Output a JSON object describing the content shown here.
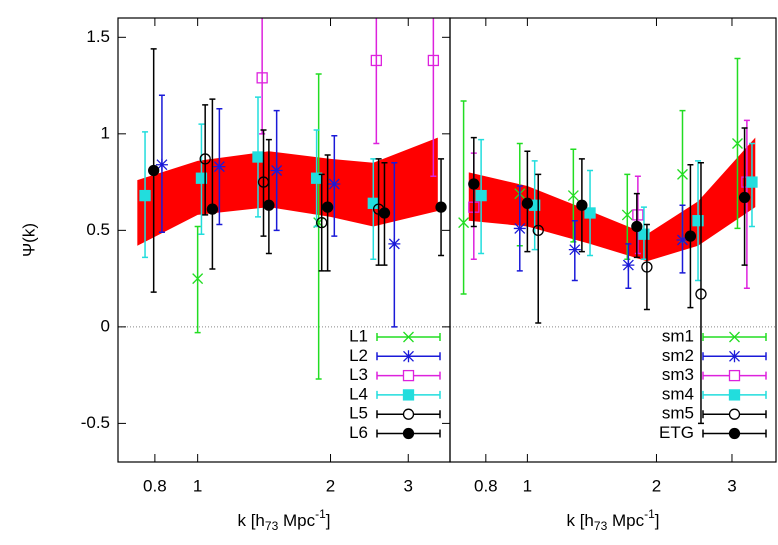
{
  "chart_data": [
    {
      "type": "errorbar",
      "xscale": "log",
      "xlim": [
        0.66,
        3.73
      ],
      "ylim": [
        -0.7,
        1.6
      ],
      "xticks": [
        0.8,
        1,
        2,
        3
      ],
      "yticks": [
        1.5,
        1,
        0.5,
        0,
        -0.5
      ],
      "zero_line": true,
      "legend": "bottom-right",
      "ylabel": "Ψ(k)",
      "xlabel": {
        "start": "k [h",
        "sub": "73",
        "mid": " Mpc",
        "sup": "-1",
        "end": "]"
      },
      "band": {
        "color": "#ff0000",
        "x": [
          0.73,
          1.0,
          1.45,
          2.0,
          2.5,
          3.5
        ],
        "lower": [
          0.42,
          0.58,
          0.62,
          0.57,
          0.52,
          0.6
        ],
        "upper": [
          0.76,
          0.86,
          0.91,
          0.87,
          0.85,
          0.98
        ]
      },
      "series": [
        {
          "name": "L1",
          "color": "#22dd22",
          "marker": "x",
          "x": [
            1.0,
            1.88
          ],
          "values": [
            0.25,
            0.54
          ],
          "lower": [
            -0.03,
            -0.27
          ],
          "upper": [
            0.52,
            1.31
          ]
        },
        {
          "name": "L2",
          "color": "#1a1ad8",
          "marker": "star",
          "x": [
            0.83,
            1.12,
            1.51,
            2.04,
            2.79
          ],
          "values": [
            0.84,
            0.83,
            0.81,
            0.74,
            0.43
          ],
          "lower": [
            0.49,
            0.53,
            0.5,
            0.47,
            0.0
          ],
          "upper": [
            1.2,
            1.13,
            1.12,
            0.99,
            0.85
          ]
        },
        {
          "name": "L3",
          "color": "#dd22dd",
          "marker": "square-open",
          "x": [
            1.4,
            2.54,
            3.42
          ],
          "values": [
            1.29,
            1.38,
            1.38
          ],
          "lower": [
            1.0,
            0.95,
            0.78
          ],
          "upper": [
            1.7,
            1.7,
            1.7
          ]
        },
        {
          "name": "L4",
          "color": "#22dddd",
          "marker": "square",
          "x": [
            0.76,
            1.02,
            1.37,
            1.86,
            2.5
          ],
          "values": [
            0.68,
            0.77,
            0.88,
            0.77,
            0.64
          ],
          "lower": [
            0.36,
            0.48,
            0.57,
            0.52,
            0.35
          ],
          "upper": [
            1.01,
            1.05,
            1.19,
            1.02,
            0.87
          ]
        },
        {
          "name": "L5",
          "color": "#000000",
          "marker": "circle-open",
          "x": [
            1.04,
            1.41,
            1.91,
            2.57
          ],
          "values": [
            0.87,
            0.75,
            0.54,
            0.61
          ],
          "lower": [
            0.58,
            0.47,
            0.29,
            0.32
          ],
          "upper": [
            1.15,
            1.02,
            0.79,
            0.87
          ]
        },
        {
          "name": "L6",
          "color": "#000000",
          "marker": "circle",
          "x": [
            0.795,
            1.08,
            1.45,
            1.97,
            2.65,
            3.56
          ],
          "values": [
            0.81,
            0.61,
            0.63,
            0.62,
            0.59,
            0.62
          ],
          "lower": [
            0.18,
            0.3,
            0.38,
            0.29,
            0.32,
            0.37
          ],
          "upper": [
            1.44,
            1.18,
            0.97,
            0.89,
            0.85,
            0.87
          ]
        }
      ]
    },
    {
      "type": "errorbar",
      "xscale": "log",
      "xlim": [
        0.66,
        3.8
      ],
      "ylim": [
        -0.7,
        1.6
      ],
      "xticks": [
        0.8,
        1,
        2,
        3
      ],
      "zero_line": true,
      "legend": "bottom-right",
      "xlabel": {
        "start": "k [h",
        "sub": "73",
        "mid": " Mpc",
        "sup": "-1",
        "end": "]"
      },
      "band": {
        "color": "#ff0000",
        "x": [
          0.73,
          1.0,
          1.4,
          1.9,
          2.5,
          3.4
        ],
        "lower": [
          0.55,
          0.52,
          0.43,
          0.34,
          0.42,
          0.62
        ],
        "upper": [
          0.8,
          0.73,
          0.6,
          0.48,
          0.65,
          0.98
        ]
      },
      "series": [
        {
          "name": "sm1",
          "color": "#22dd22",
          "marker": "x",
          "x": [
            0.71,
            0.96,
            1.28,
            1.71,
            2.3,
            3.09
          ],
          "values": [
            0.54,
            0.69,
            0.68,
            0.58,
            0.79,
            0.95
          ],
          "lower": [
            0.17,
            0.42,
            0.44,
            0.35,
            0.44,
            0.51
          ],
          "upper": [
            1.17,
            0.95,
            0.92,
            0.79,
            1.12,
            1.39
          ]
        },
        {
          "name": "sm2",
          "color": "#1a1ad8",
          "marker": "star",
          "x": [
            0.96,
            1.29,
            1.72,
            2.3
          ],
          "values": [
            0.51,
            0.4,
            0.32,
            0.45
          ],
          "lower": [
            0.29,
            0.24,
            0.2,
            0.28
          ],
          "upper": [
            0.73,
            0.55,
            0.43,
            0.63
          ]
        },
        {
          "name": "sm3",
          "color": "#dd22dd",
          "marker": "square-open",
          "x": [
            0.75,
            1.81,
            3.25
          ],
          "values": [
            0.62,
            0.58,
            0.75
          ],
          "lower": [
            0.35,
            0.38,
            0.2
          ],
          "upper": [
            0.9,
            0.78,
            1.07
          ]
        },
        {
          "name": "sm4",
          "color": "#22dddd",
          "marker": "square",
          "x": [
            0.78,
            1.04,
            1.4,
            1.87,
            2.5,
            3.34
          ],
          "values": [
            0.68,
            0.63,
            0.59,
            0.48,
            0.55,
            0.75
          ],
          "lower": [
            0.38,
            0.4,
            0.37,
            0.35,
            0.24,
            0.52
          ],
          "upper": [
            0.97,
            0.86,
            0.81,
            0.62,
            0.86,
            0.95
          ]
        },
        {
          "name": "sm5",
          "color": "#000000",
          "marker": "circle-open",
          "x": [
            1.06,
            1.9,
            2.54
          ],
          "values": [
            0.5,
            0.31,
            0.17
          ],
          "lower": [
            0.02,
            0.09,
            -0.5
          ],
          "upper": [
            0.79,
            0.53,
            0.85
          ]
        },
        {
          "name": "ETG",
          "color": "#000000",
          "marker": "circle",
          "x": [
            0.75,
            1.0,
            1.34,
            1.8,
            2.4,
            3.21
          ],
          "values": [
            0.74,
            0.64,
            0.63,
            0.52,
            0.47,
            0.67
          ],
          "lower": [
            0.52,
            0.39,
            0.39,
            0.36,
            0.1,
            0.32
          ],
          "upper": [
            0.98,
            0.91,
            0.87,
            0.69,
            0.84,
            1.03
          ]
        }
      ]
    }
  ]
}
